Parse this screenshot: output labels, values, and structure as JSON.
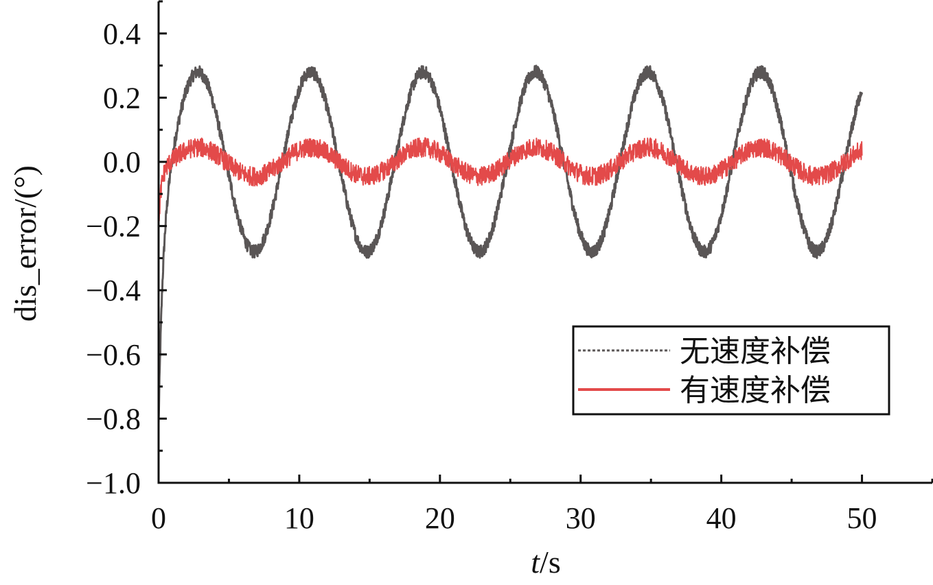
{
  "chart_data": {
    "type": "line",
    "title": "",
    "xlabel_italic": "t",
    "xlabel_rest": "/s",
    "ylabel": "dis_error/(°)",
    "xlim": [
      0,
      55
    ],
    "ylim": [
      -1.0,
      0.5
    ],
    "x_ticks": [
      0,
      10,
      20,
      30,
      40,
      50
    ],
    "x_tick_labels": [
      "0",
      "10",
      "20",
      "30",
      "40",
      "50"
    ],
    "y_ticks": [
      -1.0,
      -0.8,
      -0.6,
      -0.4,
      -0.2,
      0.0,
      0.2,
      0.4
    ],
    "y_tick_labels": [
      "−1.0",
      "−0.8",
      "−0.6",
      "−0.4",
      "−0.2",
      "0.0",
      "0.2",
      "0.4"
    ],
    "grid": false,
    "legend_position": "center-right",
    "series": [
      {
        "name": "无速度补偿",
        "color": "#5a5656",
        "line_style": "dotted",
        "t_range": [
          0,
          50
        ],
        "amplitude": 0.28,
        "period": 8,
        "peak_times": [
          2.8,
          10.8,
          18.8,
          26.8,
          34.8,
          42.8
        ],
        "trough_times": [
          6.8,
          14.8,
          22.8,
          30.8,
          38.8,
          46.8
        ],
        "initial_value": -0.82,
        "noise_band": 0.02
      },
      {
        "name": "有速度补偿",
        "color": "#e34a4a",
        "line_style": "solid",
        "t_range": [
          0,
          50
        ],
        "amplitude": 0.045,
        "period": 8,
        "initial_value": -0.2,
        "noise_band": 0.03
      }
    ]
  }
}
